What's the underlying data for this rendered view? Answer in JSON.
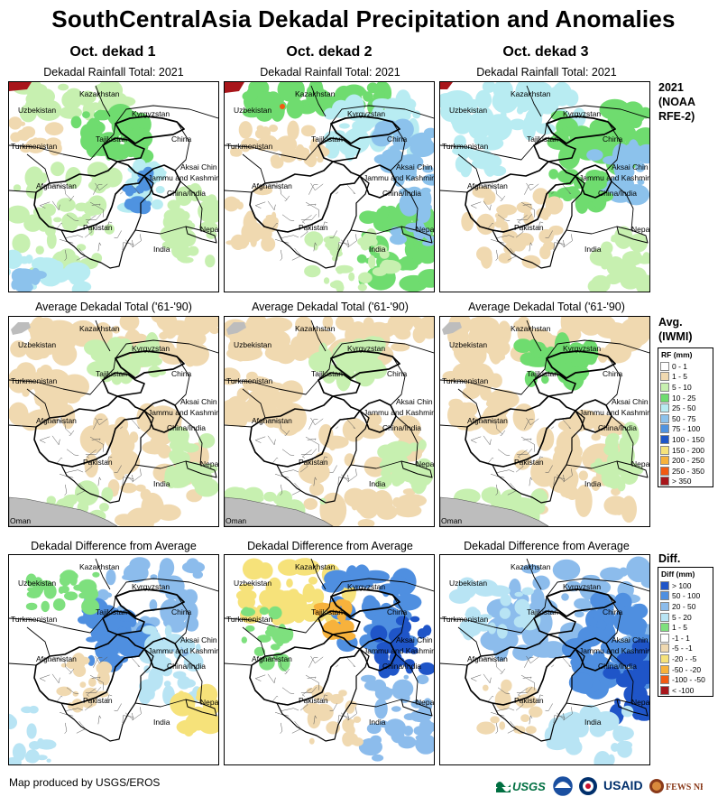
{
  "title": "SouthCentralAsia Dekadal Precipitation and Anomalies",
  "columns": [
    "Oct. dekad 1",
    "Oct. dekad 2",
    "Oct. dekad 3"
  ],
  "rows": [
    {
      "panel_title": "Dekadal Rainfall Total: 2021",
      "label_lines": [
        "2021",
        "(NOAA",
        "RFE-2)"
      ]
    },
    {
      "panel_title": "Average Dekadal Total ('61-'90)",
      "label_lines": [
        "Avg.",
        "(IWMI)"
      ]
    },
    {
      "panel_title": "Dekadal Difference from Average",
      "label_lines": [
        "Diff."
      ]
    }
  ],
  "map_labels": {
    "kazakhstan": "Kazakhstan",
    "uzbekistan": "Uzbekistan",
    "kyrgyzstan": "Kyrgyzstan",
    "tajikistan": "Tajikistan",
    "turkmenistan": "Turkmenistan",
    "china": "China",
    "aksai_chin": "Aksai Chin",
    "jammu": "Jammu and Kashmir",
    "china_india": "China/India",
    "afghanistan": "Afghanistan",
    "pakistan": "Pakistan",
    "nepal": "Nepal",
    "india": "India",
    "oman": "Oman"
  },
  "legend_rf": {
    "title": "RF (mm)",
    "items": [
      {
        "label": "0 - 1",
        "color": "#ffffff"
      },
      {
        "label": "1 - 5",
        "color": "#f0d9b0"
      },
      {
        "label": "5 - 10",
        "color": "#c7f0b0"
      },
      {
        "label": "10 - 25",
        "color": "#6fdc6f"
      },
      {
        "label": "25 - 50",
        "color": "#b8ecf2"
      },
      {
        "label": "50 - 75",
        "color": "#8cc2ec"
      },
      {
        "label": "75 - 100",
        "color": "#4f93e0"
      },
      {
        "label": "100 - 150",
        "color": "#1e56c8"
      },
      {
        "label": "150 - 200",
        "color": "#f6e27a"
      },
      {
        "label": "200 - 250",
        "color": "#f7b23c"
      },
      {
        "label": "250 - 350",
        "color": "#f25a12"
      },
      {
        "label": "> 350",
        "color": "#a8161b"
      }
    ]
  },
  "legend_diff": {
    "title": "Diff (mm)",
    "items": [
      {
        "label": "> 100",
        "color": "#1f55c8"
      },
      {
        "label": "50 - 100",
        "color": "#4f8fe0"
      },
      {
        "label": "20 - 50",
        "color": "#8cbcec"
      },
      {
        "label": "5 - 20",
        "color": "#b8e4f4"
      },
      {
        "label": "1 - 5",
        "color": "#7ee07e"
      },
      {
        "label": "-1 - 1",
        "color": "#ffffff"
      },
      {
        "label": "-5 - -1",
        "color": "#f0d9b0"
      },
      {
        "label": "-20 - -5",
        "color": "#f6e27a"
      },
      {
        "label": "-50 - -20",
        "color": "#f7b23c"
      },
      {
        "label": "-100 - -50",
        "color": "#f25a12"
      },
      {
        "label": "< -100",
        "color": "#a8161b"
      }
    ]
  },
  "footer": "Map produced by USGS/EROS",
  "logos": {
    "usgs": "USGS",
    "usaid": "USAID",
    "fewsnet": "FEWS NET"
  }
}
